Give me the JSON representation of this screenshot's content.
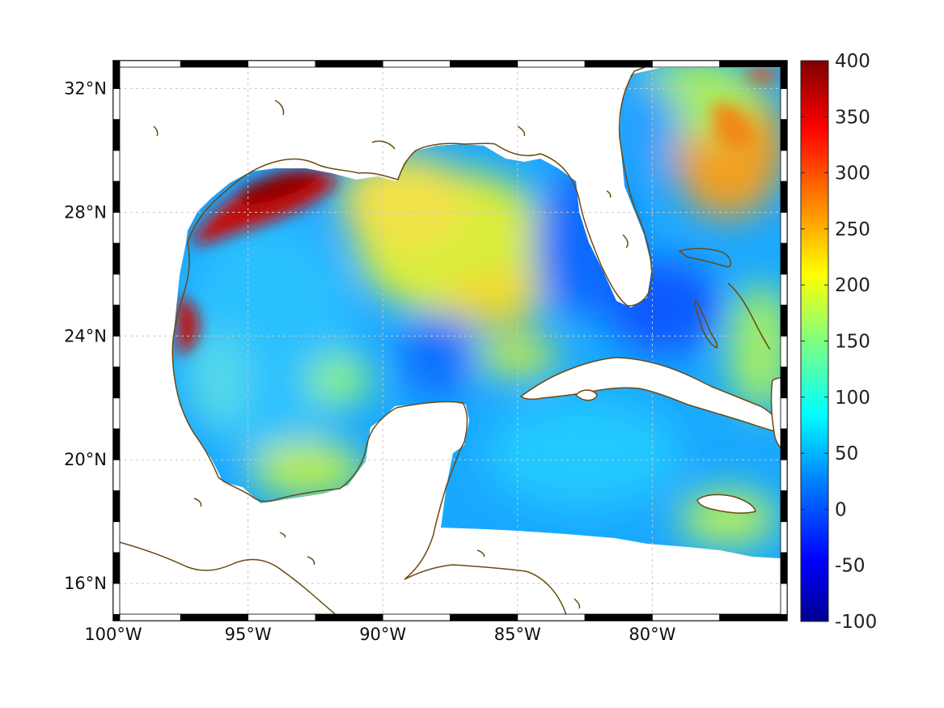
{
  "map": {
    "lon_ticks": [
      "100°W",
      "95°W",
      "90°W",
      "85°W",
      "80°W"
    ],
    "lon_values": [
      -100,
      -95,
      -90,
      -85,
      -80
    ],
    "lat_ticks": [
      "32°N",
      "28°N",
      "24°N",
      "20°N",
      "16°N"
    ],
    "lat_values": [
      32,
      28,
      24,
      20,
      16
    ],
    "extent": {
      "lon_min": -100,
      "lon_max": -75,
      "lat_min": 14.8,
      "lat_max": 32.9
    },
    "grid": true,
    "coast_color": "#6b4a12"
  },
  "colorbar": {
    "min": -100,
    "max": 400,
    "ticks": [
      "400",
      "350",
      "300",
      "250",
      "200",
      "150",
      "100",
      "50",
      "0",
      "-50",
      "-100"
    ],
    "tick_values": [
      400,
      350,
      300,
      250,
      200,
      150,
      100,
      50,
      0,
      -50,
      -100
    ],
    "colormap": "jet",
    "stops": [
      "#00008f",
      "#0000ff",
      "#0080ff",
      "#00ffff",
      "#80ff80",
      "#ffff00",
      "#ff8000",
      "#ff0000",
      "#800000"
    ]
  }
}
